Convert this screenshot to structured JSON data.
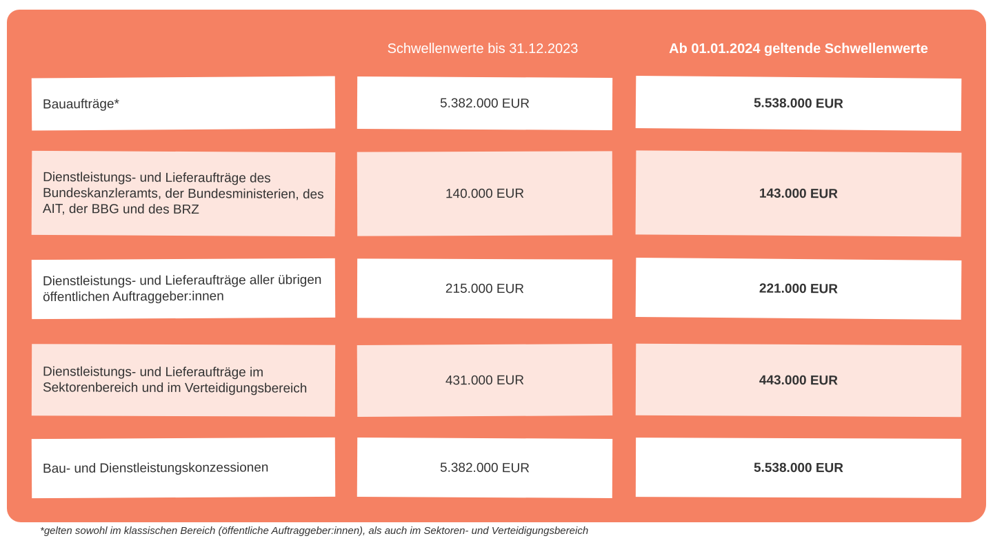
{
  "table": {
    "headers": [
      "Schwellenwerte bis 31.12.2023",
      "Ab 01.01.2024 geltende Schwellenwerte"
    ],
    "rows": [
      [
        "Bauaufträge*",
        "5.382.000 EUR",
        "5.538.000 EUR"
      ],
      [
        "Dienstleistungs- und Lieferaufträge des Bundeskanzleramts, der Bundesministerien, des AIT, der BBG und des BRZ",
        "140.000 EUR",
        "143.000 EUR"
      ],
      [
        "Dienstleistungs- und Lieferaufträge aller übrigen öffentlichen Auftraggeber:innen",
        "215.000 EUR",
        "221.000 EUR"
      ],
      [
        "Dienstleistungs- und Lieferaufträge im Sektorenbereich und im Verteidigungsbereich",
        "431.000 EUR",
        "443.000 EUR"
      ],
      [
        "Bau- und Dienstleistungskonzessionen",
        "5.382.000 EUR",
        "5.538.000 EUR"
      ]
    ]
  },
  "footnote": "*gelten sowohl im klassischen Bereich (öffentliche Auftraggeber:innen), als auch im Sektoren- und Verteidigungsbereich"
}
